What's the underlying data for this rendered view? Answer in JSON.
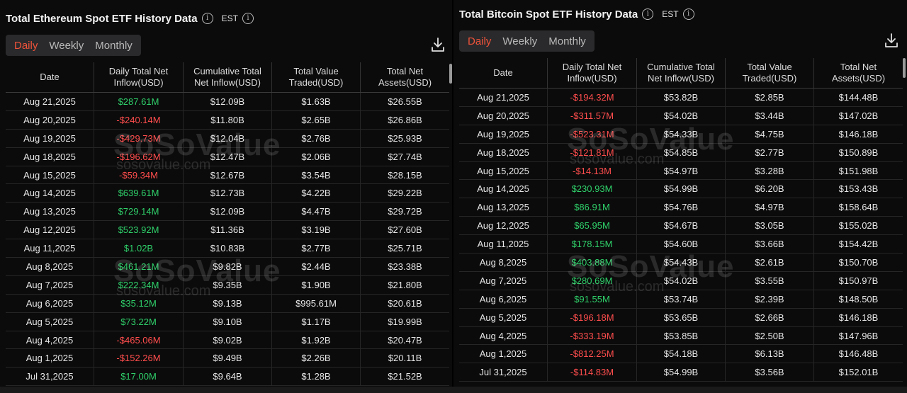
{
  "eth": {
    "title": "Total Ethereum Spot ETF History Data",
    "timezone": "EST",
    "tabs": [
      "Daily",
      "Weekly",
      "Monthly"
    ],
    "active_tab": "Daily",
    "headers": [
      "Date",
      "Daily Total Net Inflow(USD)",
      "Cumulative Total Net Inflow(USD)",
      "Total Value Traded(USD)",
      "Total Net Assets(USD)"
    ],
    "rows": [
      [
        "Aug 21,2025",
        "$287.61M",
        "$12.09B",
        "$1.63B",
        "$26.55B"
      ],
      [
        "Aug 20,2025",
        "-$240.14M",
        "$11.80B",
        "$2.65B",
        "$26.86B"
      ],
      [
        "Aug 19,2025",
        "-$429.73M",
        "$12.04B",
        "$2.76B",
        "$25.93B"
      ],
      [
        "Aug 18,2025",
        "-$196.62M",
        "$12.47B",
        "$2.06B",
        "$27.74B"
      ],
      [
        "Aug 15,2025",
        "-$59.34M",
        "$12.67B",
        "$3.54B",
        "$28.15B"
      ],
      [
        "Aug 14,2025",
        "$639.61M",
        "$12.73B",
        "$4.22B",
        "$29.22B"
      ],
      [
        "Aug 13,2025",
        "$729.14M",
        "$12.09B",
        "$4.47B",
        "$29.72B"
      ],
      [
        "Aug 12,2025",
        "$523.92M",
        "$11.36B",
        "$3.19B",
        "$27.60B"
      ],
      [
        "Aug 11,2025",
        "$1.02B",
        "$10.83B",
        "$2.77B",
        "$25.71B"
      ],
      [
        "Aug 8,2025",
        "$461.21M",
        "$9.82B",
        "$2.44B",
        "$23.38B"
      ],
      [
        "Aug 7,2025",
        "$222.34M",
        "$9.35B",
        "$1.90B",
        "$21.80B"
      ],
      [
        "Aug 6,2025",
        "$35.12M",
        "$9.13B",
        "$995.61M",
        "$20.61B"
      ],
      [
        "Aug 5,2025",
        "$73.22M",
        "$9.10B",
        "$1.17B",
        "$19.99B"
      ],
      [
        "Aug 4,2025",
        "-$465.06M",
        "$9.02B",
        "$1.92B",
        "$20.47B"
      ],
      [
        "Aug 1,2025",
        "-$152.26M",
        "$9.49B",
        "$2.26B",
        "$20.11B"
      ],
      [
        "Jul 31,2025",
        "$17.00M",
        "$9.64B",
        "$1.28B",
        "$21.52B"
      ]
    ]
  },
  "btc": {
    "title": "Total Bitcoin Spot ETF History Data",
    "timezone": "EST",
    "tabs": [
      "Daily",
      "Weekly",
      "Monthly"
    ],
    "active_tab": "Daily",
    "headers": [
      "Date",
      "Daily Total Net Inflow(USD)",
      "Cumulative Total Net Inflow(USD)",
      "Total Value Traded(USD)",
      "Total Net Assets(USD)"
    ],
    "rows": [
      [
        "Aug 21,2025",
        "-$194.32M",
        "$53.82B",
        "$2.85B",
        "$144.48B"
      ],
      [
        "Aug 20,2025",
        "-$311.57M",
        "$54.02B",
        "$3.44B",
        "$147.02B"
      ],
      [
        "Aug 19,2025",
        "-$523.31M",
        "$54.33B",
        "$4.75B",
        "$146.18B"
      ],
      [
        "Aug 18,2025",
        "-$121.81M",
        "$54.85B",
        "$2.77B",
        "$150.89B"
      ],
      [
        "Aug 15,2025",
        "-$14.13M",
        "$54.97B",
        "$3.28B",
        "$151.98B"
      ],
      [
        "Aug 14,2025",
        "$230.93M",
        "$54.99B",
        "$6.20B",
        "$153.43B"
      ],
      [
        "Aug 13,2025",
        "$86.91M",
        "$54.76B",
        "$4.97B",
        "$158.64B"
      ],
      [
        "Aug 12,2025",
        "$65.95M",
        "$54.67B",
        "$3.05B",
        "$155.02B"
      ],
      [
        "Aug 11,2025",
        "$178.15M",
        "$54.60B",
        "$3.66B",
        "$154.42B"
      ],
      [
        "Aug 8,2025",
        "$403.88M",
        "$54.43B",
        "$2.61B",
        "$150.70B"
      ],
      [
        "Aug 7,2025",
        "$280.69M",
        "$54.02B",
        "$3.55B",
        "$150.97B"
      ],
      [
        "Aug 6,2025",
        "$91.55M",
        "$53.74B",
        "$2.39B",
        "$148.50B"
      ],
      [
        "Aug 5,2025",
        "-$196.18M",
        "$53.65B",
        "$2.66B",
        "$146.18B"
      ],
      [
        "Aug 4,2025",
        "-$333.19M",
        "$53.85B",
        "$2.50B",
        "$147.96B"
      ],
      [
        "Aug 1,2025",
        "-$812.25M",
        "$54.18B",
        "$6.13B",
        "$146.48B"
      ],
      [
        "Jul 31,2025",
        "-$114.83M",
        "$54.99B",
        "$3.56B",
        "$152.01B"
      ]
    ]
  },
  "watermark": {
    "logo": "SoSoValue",
    "site": "sosovalue.com"
  },
  "colors": {
    "positive": "#2fd06a",
    "negative": "#ff4d4d",
    "active_tab": "#f0533a",
    "background": "#0b0b0b"
  },
  "icons": {
    "info": "info-circle-icon",
    "download": "download-icon"
  }
}
